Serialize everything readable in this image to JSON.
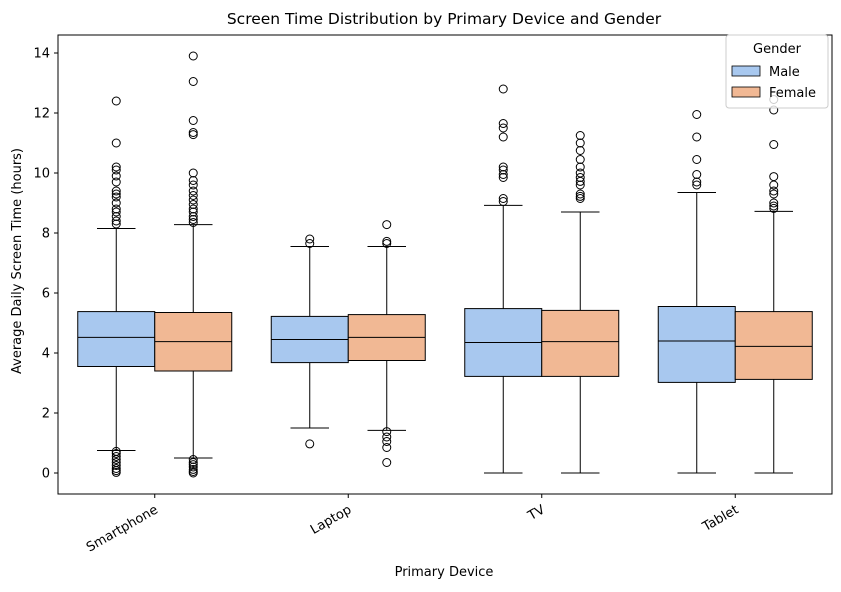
{
  "chart_data": {
    "type": "box",
    "title": "Screen Time Distribution by Primary Device and Gender",
    "xlabel": "Primary Device",
    "ylabel": "Average Daily Screen Time (hours)",
    "ylim": [
      -0.7,
      14.6
    ],
    "yticks": [
      0,
      2,
      4,
      6,
      8,
      10,
      12,
      14
    ],
    "categories": [
      "Smartphone",
      "Laptop",
      "TV",
      "Tablet"
    ],
    "legend": {
      "title": "Gender",
      "position": "top-right"
    },
    "grid": false,
    "series": [
      {
        "name": "Male",
        "color": "#a8c8ef",
        "boxes": [
          {
            "whislo": 0.75,
            "q1": 3.55,
            "med": 4.52,
            "q3": 5.38,
            "whishi": 8.15,
            "fliers": [
              12.4,
              11.0,
              10.2,
              10.1,
              9.9,
              9.7,
              9.4,
              9.3,
              9.2,
              9.0,
              8.8,
              8.7,
              8.55,
              8.4,
              8.3,
              0.72,
              0.65,
              0.55,
              0.45,
              0.35,
              0.25,
              0.15,
              0.08,
              0.02
            ]
          },
          {
            "whislo": 1.5,
            "q1": 3.68,
            "med": 4.45,
            "q3": 5.22,
            "whishi": 7.55,
            "fliers": [
              7.8,
              7.65,
              0.97
            ]
          },
          {
            "whislo": 0.0,
            "q1": 3.22,
            "med": 4.35,
            "q3": 5.48,
            "whishi": 8.92,
            "fliers": [
              12.8,
              11.65,
              11.5,
              11.2,
              10.2,
              10.1,
              9.95,
              9.85,
              9.15,
              9.05
            ]
          },
          {
            "whislo": 0.0,
            "q1": 3.02,
            "med": 4.4,
            "q3": 5.55,
            "whishi": 9.35,
            "fliers": [
              11.95,
              11.2,
              10.45,
              9.95,
              9.7,
              9.6
            ]
          }
        ]
      },
      {
        "name": "Female",
        "color": "#f1b894",
        "boxes": [
          {
            "whislo": 0.5,
            "q1": 3.4,
            "med": 4.38,
            "q3": 5.35,
            "whishi": 8.28,
            "fliers": [
              13.9,
              13.05,
              11.75,
              11.35,
              11.28,
              10.0,
              9.75,
              9.6,
              9.4,
              9.25,
              9.1,
              8.95,
              8.8,
              8.7,
              8.55,
              8.45,
              8.35,
              0.45,
              0.35,
              0.28,
              0.2,
              0.12,
              0.05,
              0.0
            ]
          },
          {
            "whislo": 1.42,
            "q1": 3.75,
            "med": 4.52,
            "q3": 5.28,
            "whishi": 7.55,
            "fliers": [
              8.28,
              7.72,
              7.65,
              1.38,
              1.2,
              1.05,
              0.85,
              0.35
            ]
          },
          {
            "whislo": 0.0,
            "q1": 3.22,
            "med": 4.38,
            "q3": 5.42,
            "whishi": 8.7,
            "fliers": [
              11.25,
              11.0,
              10.75,
              10.45,
              10.2,
              10.0,
              9.85,
              9.72,
              9.6,
              9.3,
              9.22,
              9.15
            ]
          },
          {
            "whislo": 0.0,
            "q1": 3.12,
            "med": 4.22,
            "q3": 5.38,
            "whishi": 8.72,
            "fliers": [
              12.45,
              12.1,
              10.95,
              9.88,
              9.6,
              9.4,
              9.3,
              9.0,
              8.9,
              8.82
            ]
          }
        ]
      }
    ]
  }
}
